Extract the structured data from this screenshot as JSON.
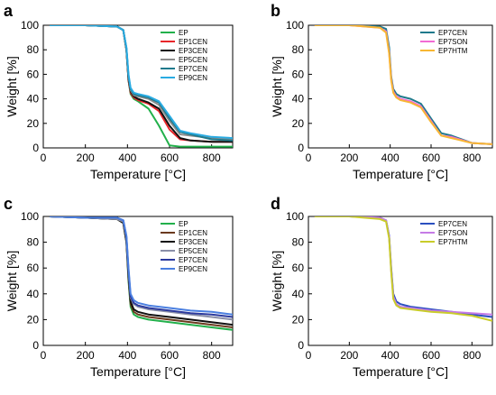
{
  "chart_data": [
    {
      "panel": "a",
      "type": "line",
      "xlabel": "Temperature [°C]",
      "ylabel": "Weight [%]",
      "xlim": [
        0,
        900
      ],
      "ylim": [
        0,
        100
      ],
      "xticks": [
        0,
        200,
        400,
        600,
        800
      ],
      "yticks": [
        0,
        20,
        40,
        60,
        80,
        100
      ],
      "grid": false,
      "legend": "top-right",
      "series": [
        {
          "name": "EP",
          "color": "#22b04b",
          "x": [
            30,
            200,
            350,
            380,
            395,
            405,
            415,
            430,
            450,
            500,
            550,
            600,
            650,
            700,
            800,
            900
          ],
          "y": [
            100,
            100,
            99,
            96,
            80,
            55,
            44,
            40,
            38,
            32,
            18,
            2,
            1,
            1,
            1,
            1
          ]
        },
        {
          "name": "EP1CEN",
          "color": "#e8262a",
          "x": [
            30,
            200,
            350,
            380,
            395,
            405,
            415,
            430,
            450,
            500,
            550,
            600,
            650,
            700,
            800,
            900
          ],
          "y": [
            100,
            100,
            99,
            96,
            80,
            55,
            45,
            41,
            39,
            36,
            30,
            15,
            7,
            6,
            5,
            5
          ]
        },
        {
          "name": "EP3CEN",
          "color": "#111111",
          "x": [
            30,
            200,
            350,
            380,
            395,
            405,
            415,
            430,
            450,
            500,
            550,
            600,
            650,
            700,
            800,
            900
          ],
          "y": [
            100,
            100,
            99,
            96,
            80,
            56,
            46,
            42,
            40,
            37,
            32,
            18,
            8,
            6,
            5,
            5
          ]
        },
        {
          "name": "EP5CEN",
          "color": "#8c8c8c",
          "x": [
            30,
            200,
            350,
            380,
            395,
            405,
            415,
            430,
            450,
            500,
            550,
            600,
            650,
            700,
            800,
            900
          ],
          "y": [
            100,
            100,
            99,
            96,
            81,
            58,
            47,
            43,
            42,
            40,
            35,
            22,
            11,
            10,
            8,
            7
          ]
        },
        {
          "name": "EP7CEN",
          "color": "#1f7a8c",
          "x": [
            30,
            200,
            350,
            380,
            395,
            405,
            415,
            430,
            450,
            500,
            550,
            600,
            650,
            700,
            800,
            900
          ],
          "y": [
            100,
            100,
            99,
            96,
            81,
            58,
            48,
            44,
            43,
            41,
            37,
            24,
            13,
            11,
            7,
            6
          ]
        },
        {
          "name": "EP9CEN",
          "color": "#29abe2",
          "x": [
            30,
            200,
            350,
            380,
            395,
            405,
            415,
            430,
            450,
            500,
            550,
            600,
            650,
            700,
            800,
            900
          ],
          "y": [
            100,
            100,
            99,
            96,
            82,
            60,
            49,
            45,
            44,
            42,
            38,
            26,
            14,
            12,
            9,
            8
          ]
        }
      ]
    },
    {
      "panel": "b",
      "type": "line",
      "xlabel": "Temperature [°C]",
      "ylabel": "Weight [%]",
      "xlim": [
        0,
        900
      ],
      "ylim": [
        0,
        100
      ],
      "xticks": [
        0,
        200,
        400,
        600,
        800
      ],
      "yticks": [
        0,
        20,
        40,
        60,
        80,
        100
      ],
      "grid": false,
      "legend": "top-right",
      "series": [
        {
          "name": "EP7CEN",
          "color": "#1f7a8c",
          "x": [
            30,
            200,
            350,
            380,
            395,
            405,
            415,
            430,
            450,
            500,
            550,
            600,
            650,
            700,
            800,
            900
          ],
          "y": [
            100,
            100,
            99,
            97,
            82,
            58,
            48,
            44,
            42,
            40,
            36,
            24,
            12,
            10,
            4,
            3
          ]
        },
        {
          "name": "EP7SON",
          "color": "#f26bd4",
          "x": [
            30,
            200,
            350,
            380,
            395,
            405,
            415,
            430,
            450,
            500,
            550,
            600,
            650,
            700,
            800,
            900
          ],
          "y": [
            100,
            100,
            98,
            95,
            78,
            56,
            46,
            42,
            40,
            38,
            34,
            22,
            10,
            9,
            4,
            3
          ]
        },
        {
          "name": "EP7HTM",
          "color": "#f7b733",
          "x": [
            30,
            200,
            350,
            380,
            395,
            405,
            415,
            430,
            450,
            500,
            550,
            600,
            650,
            700,
            800,
            900
          ],
          "y": [
            100,
            100,
            98,
            94,
            77,
            55,
            45,
            41,
            39,
            37,
            33,
            21,
            10,
            8,
            4,
            3
          ]
        }
      ]
    },
    {
      "panel": "c",
      "type": "line",
      "xlabel": "Temperature [°C]",
      "ylabel": "Weight [%]",
      "xlim": [
        0,
        900
      ],
      "ylim": [
        0,
        100
      ],
      "xticks": [
        0,
        200,
        400,
        600,
        800
      ],
      "yticks": [
        0,
        20,
        40,
        60,
        80,
        100
      ],
      "grid": false,
      "legend": "top-right",
      "series": [
        {
          "name": "EP",
          "color": "#22b04b",
          "x": [
            30,
            200,
            350,
            380,
            395,
            405,
            415,
            430,
            450,
            500,
            600,
            700,
            800,
            900
          ],
          "y": [
            100,
            99,
            98,
            95,
            80,
            50,
            30,
            24,
            22,
            20,
            18,
            16,
            14,
            12
          ]
        },
        {
          "name": "EP1CEN",
          "color": "#6b3a1e",
          "x": [
            30,
            200,
            350,
            380,
            395,
            405,
            415,
            430,
            450,
            500,
            600,
            700,
            800,
            900
          ],
          "y": [
            100,
            99,
            98,
            95,
            80,
            52,
            32,
            26,
            24,
            22,
            20,
            18,
            16,
            14
          ]
        },
        {
          "name": "EP3CEN",
          "color": "#111111",
          "x": [
            30,
            200,
            350,
            380,
            395,
            405,
            415,
            430,
            450,
            500,
            600,
            700,
            800,
            900
          ],
          "y": [
            100,
            99,
            98,
            95,
            81,
            54,
            34,
            28,
            26,
            24,
            22,
            20,
            18,
            16
          ]
        },
        {
          "name": "EP5CEN",
          "color": "#8a8fa8",
          "x": [
            30,
            200,
            350,
            380,
            395,
            405,
            415,
            430,
            450,
            500,
            600,
            700,
            800,
            900
          ],
          "y": [
            100,
            99,
            98,
            96,
            83,
            57,
            37,
            32,
            30,
            28,
            26,
            24,
            22,
            20
          ]
        },
        {
          "name": "EP7CEN",
          "color": "#2b3a9e",
          "x": [
            30,
            200,
            350,
            380,
            395,
            405,
            415,
            430,
            450,
            500,
            600,
            700,
            800,
            900
          ],
          "y": [
            100,
            99,
            99,
            97,
            84,
            58,
            38,
            33,
            31,
            29,
            27,
            25,
            24,
            22
          ]
        },
        {
          "name": "EP9CEN",
          "color": "#4a7fe0",
          "x": [
            30,
            200,
            350,
            380,
            395,
            405,
            415,
            430,
            450,
            500,
            600,
            700,
            800,
            900
          ],
          "y": [
            100,
            99,
            99,
            97,
            85,
            60,
            40,
            35,
            33,
            31,
            29,
            27,
            26,
            24
          ]
        }
      ]
    },
    {
      "panel": "d",
      "type": "line",
      "xlabel": "Temperature [°C]",
      "ylabel": "Weight [%]",
      "xlim": [
        0,
        900
      ],
      "ylim": [
        0,
        100
      ],
      "xticks": [
        0,
        200,
        400,
        600,
        800
      ],
      "yticks": [
        0,
        20,
        40,
        60,
        80,
        100
      ],
      "grid": false,
      "legend": "top-right",
      "series": [
        {
          "name": "EP7CEN",
          "color": "#2b4fbf",
          "x": [
            30,
            200,
            350,
            380,
            395,
            405,
            415,
            430,
            450,
            500,
            600,
            700,
            800,
            900
          ],
          "y": [
            100,
            100,
            99,
            97,
            85,
            60,
            40,
            34,
            32,
            30,
            28,
            26,
            24,
            22
          ]
        },
        {
          "name": "EP7SON",
          "color": "#c57be6",
          "x": [
            30,
            200,
            350,
            380,
            395,
            405,
            415,
            430,
            450,
            500,
            600,
            700,
            800,
            900
          ],
          "y": [
            100,
            100,
            99,
            97,
            84,
            58,
            38,
            32,
            30,
            29,
            27,
            26,
            25,
            24
          ]
        },
        {
          "name": "EP7HTM",
          "color": "#c9cc2a",
          "x": [
            30,
            200,
            350,
            380,
            395,
            405,
            415,
            430,
            450,
            500,
            600,
            700,
            800,
            900
          ],
          "y": [
            100,
            100,
            98,
            96,
            83,
            57,
            36,
            31,
            29,
            28,
            26,
            25,
            23,
            19
          ]
        }
      ]
    }
  ]
}
